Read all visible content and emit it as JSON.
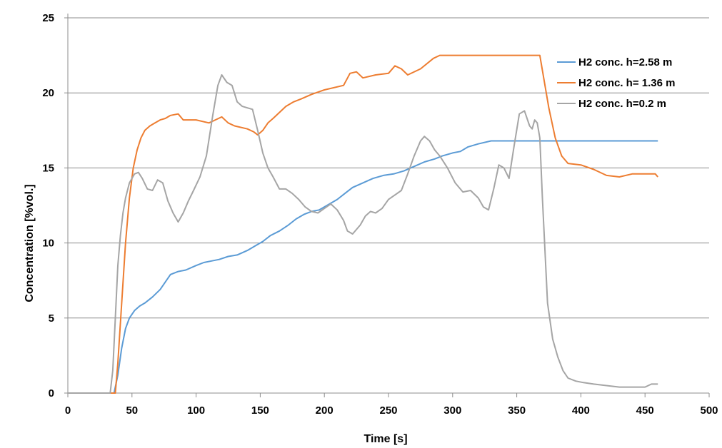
{
  "chart_data": {
    "type": "line",
    "title": "",
    "xlabel": "Time  [s]",
    "ylabel": "Concentration  [%vol.]",
    "xlim": [
      0,
      500
    ],
    "ylim": [
      0,
      25
    ],
    "xticks": [
      "0",
      "50",
      "100",
      "150",
      "200",
      "250",
      "300",
      "350",
      "400",
      "450",
      "500"
    ],
    "yticks": [
      "0",
      "5",
      "10",
      "15",
      "20",
      "25"
    ],
    "grid": "horizontal",
    "legend_position": "top-right",
    "series": [
      {
        "name": "H2 conc. h=2.58 m",
        "color": "#5b9bd5",
        "x": [
          0,
          36,
          39,
          42,
          45,
          48,
          52,
          56,
          60,
          66,
          72,
          76,
          80,
          86,
          92,
          100,
          106,
          112,
          118,
          125,
          132,
          140,
          146,
          152,
          158,
          165,
          172,
          178,
          184,
          190,
          196,
          202,
          210,
          216,
          222,
          230,
          238,
          246,
          254,
          262,
          270,
          278,
          286,
          292,
          300,
          306,
          312,
          320,
          330,
          340,
          350,
          360,
          380,
          400,
          420,
          440,
          460
        ],
        "y": [
          0,
          0,
          1.2,
          3.0,
          4.3,
          5.0,
          5.5,
          5.8,
          6.0,
          6.4,
          6.9,
          7.4,
          7.9,
          8.1,
          8.2,
          8.5,
          8.7,
          8.8,
          8.9,
          9.1,
          9.2,
          9.5,
          9.8,
          10.1,
          10.5,
          10.8,
          11.2,
          11.6,
          11.9,
          12.1,
          12.2,
          12.5,
          12.9,
          13.3,
          13.7,
          14.0,
          14.3,
          14.5,
          14.6,
          14.8,
          15.1,
          15.4,
          15.6,
          15.8,
          16.0,
          16.1,
          16.4,
          16.6,
          16.8,
          16.8,
          16.8,
          16.8,
          16.8,
          16.8,
          16.8,
          16.8,
          16.8
        ]
      },
      {
        "name": "H2 conc. h= 1.36 m",
        "color": "#ed7d31",
        "x": [
          0,
          37,
          39,
          42,
          45,
          48,
          51,
          54,
          57,
          60,
          64,
          68,
          72,
          76,
          80,
          86,
          90,
          100,
          110,
          115,
          120,
          125,
          130,
          140,
          145,
          148,
          152,
          156,
          160,
          165,
          170,
          176,
          182,
          190,
          200,
          215,
          220,
          225,
          230,
          240,
          250,
          255,
          260,
          265,
          275,
          285,
          290,
          300,
          320,
          340,
          360,
          368,
          370,
          375,
          380,
          385,
          390,
          400,
          410,
          420,
          430,
          440,
          450,
          458,
          460
        ],
        "y": [
          0,
          0,
          2.0,
          6.0,
          10.0,
          13.0,
          15.0,
          16.2,
          17.0,
          17.5,
          17.8,
          18.0,
          18.2,
          18.3,
          18.5,
          18.6,
          18.2,
          18.2,
          18.0,
          18.2,
          18.4,
          18.0,
          17.8,
          17.6,
          17.4,
          17.2,
          17.5,
          18.0,
          18.3,
          18.7,
          19.1,
          19.4,
          19.6,
          19.9,
          20.2,
          20.5,
          21.3,
          21.4,
          21.0,
          21.2,
          21.3,
          21.8,
          21.6,
          21.2,
          21.6,
          22.3,
          22.5,
          22.5,
          22.5,
          22.5,
          22.5,
          22.5,
          21.5,
          19.0,
          17.0,
          15.8,
          15.3,
          15.2,
          14.9,
          14.5,
          14.4,
          14.6,
          14.6,
          14.6,
          14.4
        ]
      },
      {
        "name": "H2 conc. h=0.2 m",
        "color": "#a5a5a5",
        "x": [
          0,
          33,
          35,
          37,
          39,
          41,
          43,
          45,
          48,
          52,
          55,
          58,
          62,
          66,
          70,
          74,
          78,
          82,
          86,
          90,
          94,
          98,
          103,
          108,
          113,
          117,
          120,
          124,
          128,
          132,
          136,
          140,
          144,
          148,
          152,
          156,
          160,
          165,
          170,
          175,
          180,
          185,
          190,
          195,
          200,
          205,
          210,
          215,
          218,
          222,
          228,
          232,
          236,
          240,
          245,
          250,
          255,
          260,
          265,
          270,
          275,
          278,
          282,
          286,
          290,
          296,
          302,
          308,
          314,
          320,
          324,
          328,
          332,
          336,
          340,
          344,
          348,
          352,
          356,
          360,
          362,
          364,
          366,
          368,
          370,
          374,
          378,
          382,
          386,
          390,
          396,
          402,
          410,
          420,
          430,
          440,
          450,
          455,
          460
        ],
        "y": [
          0,
          0,
          1.5,
          5.0,
          8.5,
          10.5,
          12.0,
          13.0,
          14.0,
          14.6,
          14.7,
          14.3,
          13.6,
          13.5,
          14.2,
          14.0,
          12.8,
          12.0,
          11.4,
          12.0,
          12.8,
          13.5,
          14.4,
          15.8,
          18.5,
          20.5,
          21.2,
          20.7,
          20.5,
          19.4,
          19.1,
          19.0,
          18.9,
          17.5,
          16.0,
          15.0,
          14.4,
          13.6,
          13.6,
          13.3,
          12.9,
          12.4,
          12.1,
          12.0,
          12.3,
          12.6,
          12.2,
          11.5,
          10.8,
          10.6,
          11.2,
          11.8,
          12.1,
          12.0,
          12.3,
          12.9,
          13.2,
          13.5,
          14.6,
          15.8,
          16.8,
          17.1,
          16.8,
          16.2,
          15.8,
          15.0,
          14.0,
          13.4,
          13.5,
          13.0,
          12.4,
          12.2,
          13.6,
          15.2,
          15.0,
          14.3,
          16.5,
          18.6,
          18.8,
          17.8,
          17.6,
          18.2,
          18.0,
          17.0,
          13.0,
          6.0,
          3.6,
          2.4,
          1.5,
          1.0,
          0.8,
          0.7,
          0.6,
          0.5,
          0.4,
          0.4,
          0.4,
          0.6,
          0.6
        ]
      }
    ]
  }
}
